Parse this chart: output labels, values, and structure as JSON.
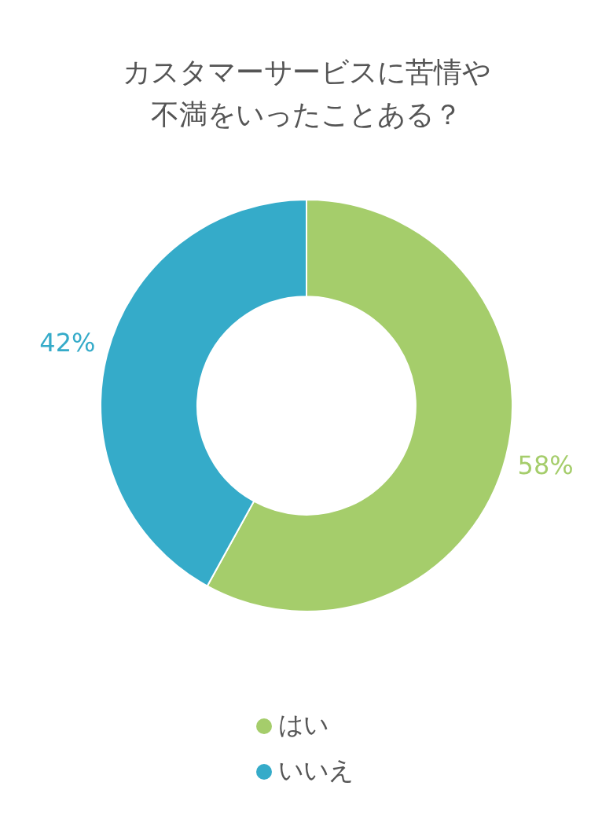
{
  "chart_data": {
    "type": "donut",
    "title": "カスタマーサービスに苦情や不満をいったことある？",
    "categories": [
      "はい",
      "いいえ"
    ],
    "values": [
      58,
      42
    ],
    "colors": [
      "#a5cd6b",
      "#35abc9"
    ],
    "value_labels": [
      "58%",
      "42%"
    ],
    "legend": "bottom"
  }
}
